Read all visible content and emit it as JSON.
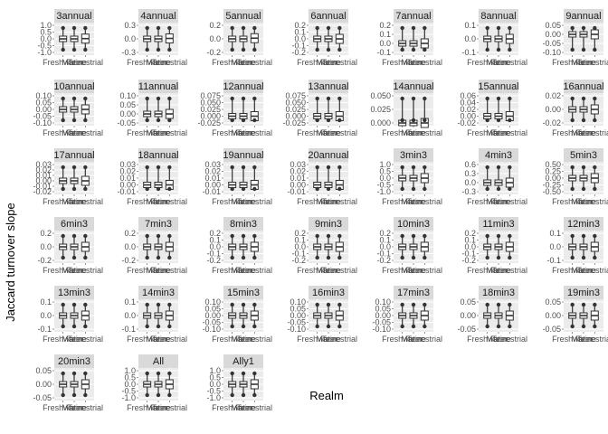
{
  "chart_data": {
    "type": "boxplot",
    "xlabel": "Realm",
    "ylabel": "Jaccard turnover slope",
    "categories": [
      "Freshwater",
      "Marine",
      "Terrestrial"
    ],
    "panels": [
      {
        "label": "3annual",
        "yticks": [
          "-1.0",
          "-0.5",
          "0.0",
          "0.5",
          "1.0"
        ],
        "medians": [
          0.0,
          0.0,
          0.02
        ]
      },
      {
        "label": "4annual",
        "yticks": [
          "-0.3",
          "0.0",
          "0.3"
        ],
        "medians": [
          0.0,
          0.0,
          0.01
        ]
      },
      {
        "label": "5annual",
        "yticks": [
          "-0.2",
          "0.0",
          "0.2"
        ],
        "medians": [
          0.0,
          0.0,
          0.01
        ]
      },
      {
        "label": "6annual",
        "yticks": [
          "-0.2",
          "-0.1",
          "0.0",
          "0.1",
          "0.2"
        ],
        "medians": [
          0.0,
          0.0,
          0.0
        ]
      },
      {
        "label": "7annual",
        "yticks": [
          "-0.1",
          "0.0",
          "0.1",
          "0.2"
        ],
        "medians": [
          0.0,
          0.0,
          0.0
        ]
      },
      {
        "label": "8annual",
        "yticks": [
          "-0.1",
          "0.0",
          "0.1"
        ],
        "medians": [
          0.0,
          0.0,
          0.0
        ]
      },
      {
        "label": "9annual",
        "yticks": [
          "-0.10",
          "-0.05",
          "0.00",
          "0.05"
        ],
        "medians": [
          0.0,
          0.0,
          0.0
        ]
      },
      {
        "label": "10annual",
        "yticks": [
          "-0.10",
          "-0.05",
          "0.00",
          "0.05",
          "0.10"
        ],
        "medians": [
          0.0,
          0.0,
          0.0
        ]
      },
      {
        "label": "11annual",
        "yticks": [
          "-0.05",
          "0.00",
          "0.05",
          "0.10"
        ],
        "medians": [
          0.0,
          0.0,
          0.0
        ]
      },
      {
        "label": "12annual",
        "yticks": [
          "-0.025",
          "0.000",
          "0.025",
          "0.050",
          "0.075"
        ],
        "medians": [
          0.0,
          0.0,
          0.0
        ]
      },
      {
        "label": "13annual",
        "yticks": [
          "-0.025",
          "0.000",
          "0.025",
          "0.050",
          "0.075"
        ],
        "medians": [
          0.0,
          0.0,
          0.0
        ]
      },
      {
        "label": "14annual",
        "yticks": [
          "0.000",
          "0.025",
          "0.050"
        ],
        "medians": [
          0.0,
          0.0,
          0.0
        ]
      },
      {
        "label": "15annual",
        "yticks": [
          "-0.02",
          "0.00",
          "0.02",
          "0.04",
          "0.06"
        ],
        "medians": [
          0.0,
          0.0,
          0.0
        ]
      },
      {
        "label": "16annual",
        "yticks": [
          "-0.02",
          "0.00",
          "0.02"
        ],
        "medians": [
          0.0,
          0.0,
          0.0
        ]
      },
      {
        "label": "17annual",
        "yticks": [
          "-0.02",
          "-0.01",
          "0.00",
          "0.01",
          "0.02",
          "0.03"
        ],
        "medians": [
          0.0,
          0.0,
          0.0
        ]
      },
      {
        "label": "18annual",
        "yticks": [
          "-0.01",
          "0.00",
          "0.01",
          "0.02",
          "0.03"
        ],
        "medians": [
          0.0,
          0.0,
          0.0
        ]
      },
      {
        "label": "19annual",
        "yticks": [
          "-0.01",
          "0.00",
          "0.01",
          "0.02",
          "0.03"
        ],
        "medians": [
          0.0,
          0.0,
          0.0
        ]
      },
      {
        "label": "20annual",
        "yticks": [
          "-0.01",
          "0.00",
          "0.01",
          "0.02",
          "0.03"
        ],
        "medians": [
          0.0,
          0.0,
          0.0
        ]
      },
      {
        "label": "3min3",
        "yticks": [
          "-1.0",
          "-0.5",
          "0.0",
          "0.5",
          "1.0"
        ],
        "medians": [
          0.0,
          0.0,
          0.0
        ]
      },
      {
        "label": "4min3",
        "yticks": [
          "-0.3",
          "0.0",
          "0.3",
          "0.6"
        ],
        "medians": [
          0.0,
          0.0,
          0.0
        ]
      },
      {
        "label": "5min3",
        "yticks": [
          "-0.50",
          "-0.25",
          "0.00",
          "0.25",
          "0.50"
        ],
        "medians": [
          0.0,
          0.0,
          0.0
        ]
      },
      {
        "label": "6min3",
        "yticks": [
          "-0.2",
          "0.0",
          "0.2"
        ],
        "medians": [
          0.0,
          0.0,
          0.0
        ]
      },
      {
        "label": "7min3",
        "yticks": [
          "-0.2",
          "0.0",
          "0.2"
        ],
        "medians": [
          0.0,
          0.0,
          0.0
        ]
      },
      {
        "label": "8min3",
        "yticks": [
          "-0.2",
          "-0.1",
          "0.0",
          "0.1",
          "0.2"
        ],
        "medians": [
          0.0,
          0.0,
          0.0
        ]
      },
      {
        "label": "9min3",
        "yticks": [
          "-0.2",
          "-0.1",
          "0.0",
          "0.1",
          "0.2"
        ],
        "medians": [
          0.0,
          0.0,
          0.0
        ]
      },
      {
        "label": "10min3",
        "yticks": [
          "-0.2",
          "-0.1",
          "0.0",
          "0.1",
          "0.2"
        ],
        "medians": [
          0.0,
          0.0,
          0.0
        ]
      },
      {
        "label": "11min3",
        "yticks": [
          "-0.2",
          "-0.1",
          "0.0",
          "0.1",
          "0.2"
        ],
        "medians": [
          0.0,
          0.0,
          0.0
        ]
      },
      {
        "label": "12min3",
        "yticks": [
          "-0.1",
          "0.0",
          "0.1"
        ],
        "medians": [
          0.0,
          0.0,
          0.0
        ]
      },
      {
        "label": "13min3",
        "yticks": [
          "-0.1",
          "0.0",
          "0.1"
        ],
        "medians": [
          0.0,
          0.0,
          0.0
        ]
      },
      {
        "label": "14min3",
        "yticks": [
          "-0.1",
          "0.0",
          "0.1"
        ],
        "medians": [
          0.0,
          0.0,
          0.0
        ]
      },
      {
        "label": "15min3",
        "yticks": [
          "-0.10",
          "-0.05",
          "0.00",
          "0.05",
          "0.10"
        ],
        "medians": [
          0.0,
          0.0,
          0.0
        ]
      },
      {
        "label": "16min3",
        "yticks": [
          "-0.10",
          "-0.05",
          "0.00",
          "0.05",
          "0.10"
        ],
        "medians": [
          0.0,
          0.0,
          0.0
        ]
      },
      {
        "label": "17min3",
        "yticks": [
          "-0.10",
          "-0.05",
          "0.00",
          "0.05",
          "0.10"
        ],
        "medians": [
          0.0,
          0.0,
          0.0
        ]
      },
      {
        "label": "18min3",
        "yticks": [
          "-0.05",
          "0.00",
          "0.05"
        ],
        "medians": [
          0.0,
          0.0,
          0.0
        ]
      },
      {
        "label": "19min3",
        "yticks": [
          "-0.05",
          "0.00",
          "0.05"
        ],
        "medians": [
          0.0,
          0.0,
          0.0
        ]
      },
      {
        "label": "20min3",
        "yticks": [
          "-0.05",
          "0.00",
          "0.05"
        ],
        "medians": [
          0.0,
          0.0,
          0.0
        ]
      },
      {
        "label": "All",
        "yticks": [
          "-1.0",
          "-0.5",
          "0.0",
          "0.5",
          "1.0"
        ],
        "medians": [
          0.0,
          0.0,
          0.0
        ]
      },
      {
        "label": "Ally1",
        "yticks": [
          "-1.0",
          "-0.5",
          "0.0",
          "0.5",
          "1.0"
        ],
        "medians": [
          0.0,
          0.0,
          0.0
        ]
      }
    ],
    "grid": true,
    "colors": {
      "panel_bg": "#ebebeb",
      "strip_bg": "#d9d9d9",
      "grid": "#ffffff",
      "box": "#333333"
    }
  }
}
